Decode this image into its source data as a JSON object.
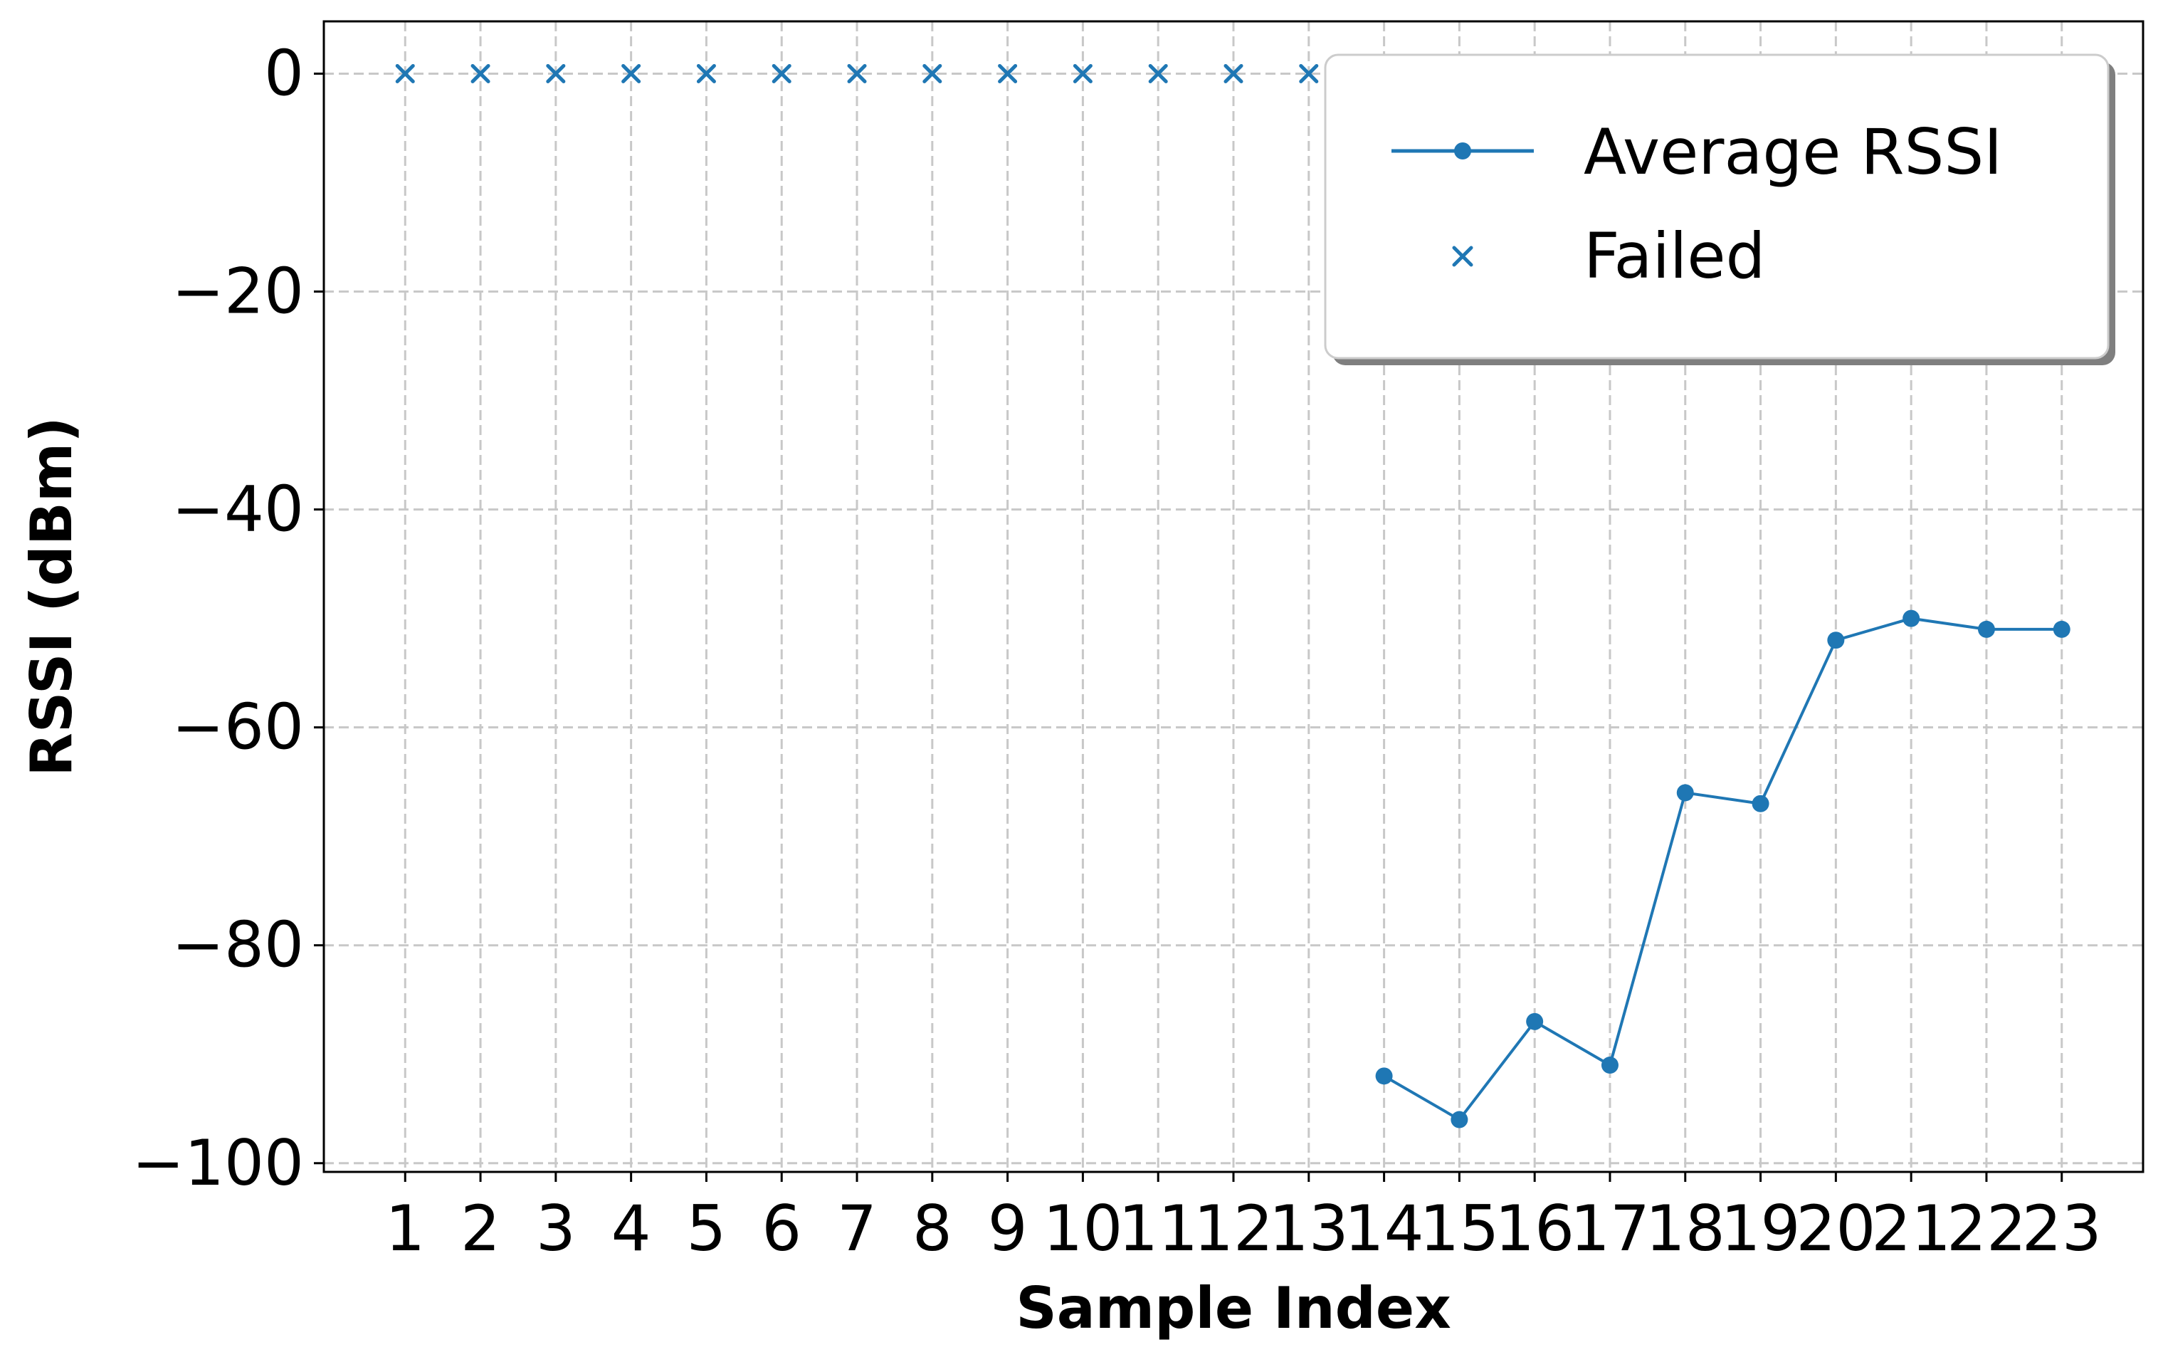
{
  "chart_data": {
    "type": "line",
    "xlabel": "Sample Index",
    "ylabel": "RSSI (dBm)",
    "x_ticks": [
      "1",
      "2",
      "3",
      "4",
      "5",
      "6",
      "7",
      "8",
      "9",
      "10",
      "11",
      "12",
      "13",
      "14",
      "15",
      "16",
      "17",
      "18",
      "19",
      "20",
      "21",
      "22",
      "23"
    ],
    "y_ticks": [
      "0",
      "−20",
      "−40",
      "−60",
      "−80",
      "−100"
    ],
    "xlim": [
      -0.08,
      24.08
    ],
    "ylim": [
      -100.8,
      4.8
    ],
    "grid": true,
    "legend_position": "top-right",
    "series": [
      {
        "name": "Average RSSI",
        "marker": "circle",
        "x": [
          14,
          15,
          16,
          17,
          18,
          19,
          20,
          21,
          22,
          23
        ],
        "y": [
          -92,
          -96,
          -87,
          -91,
          -66,
          -67,
          -52,
          -50,
          -51,
          -51
        ]
      },
      {
        "name": "Failed",
        "marker": "x",
        "x": [
          1,
          2,
          3,
          4,
          5,
          6,
          7,
          8,
          9,
          10,
          11,
          12,
          13
        ],
        "y": [
          0,
          0,
          0,
          0,
          0,
          0,
          0,
          0,
          0,
          0,
          0,
          0,
          0
        ]
      }
    ],
    "colors": {
      "series": "#1f77b4",
      "grid": "#c8c8c8",
      "axes": "#000000"
    }
  }
}
